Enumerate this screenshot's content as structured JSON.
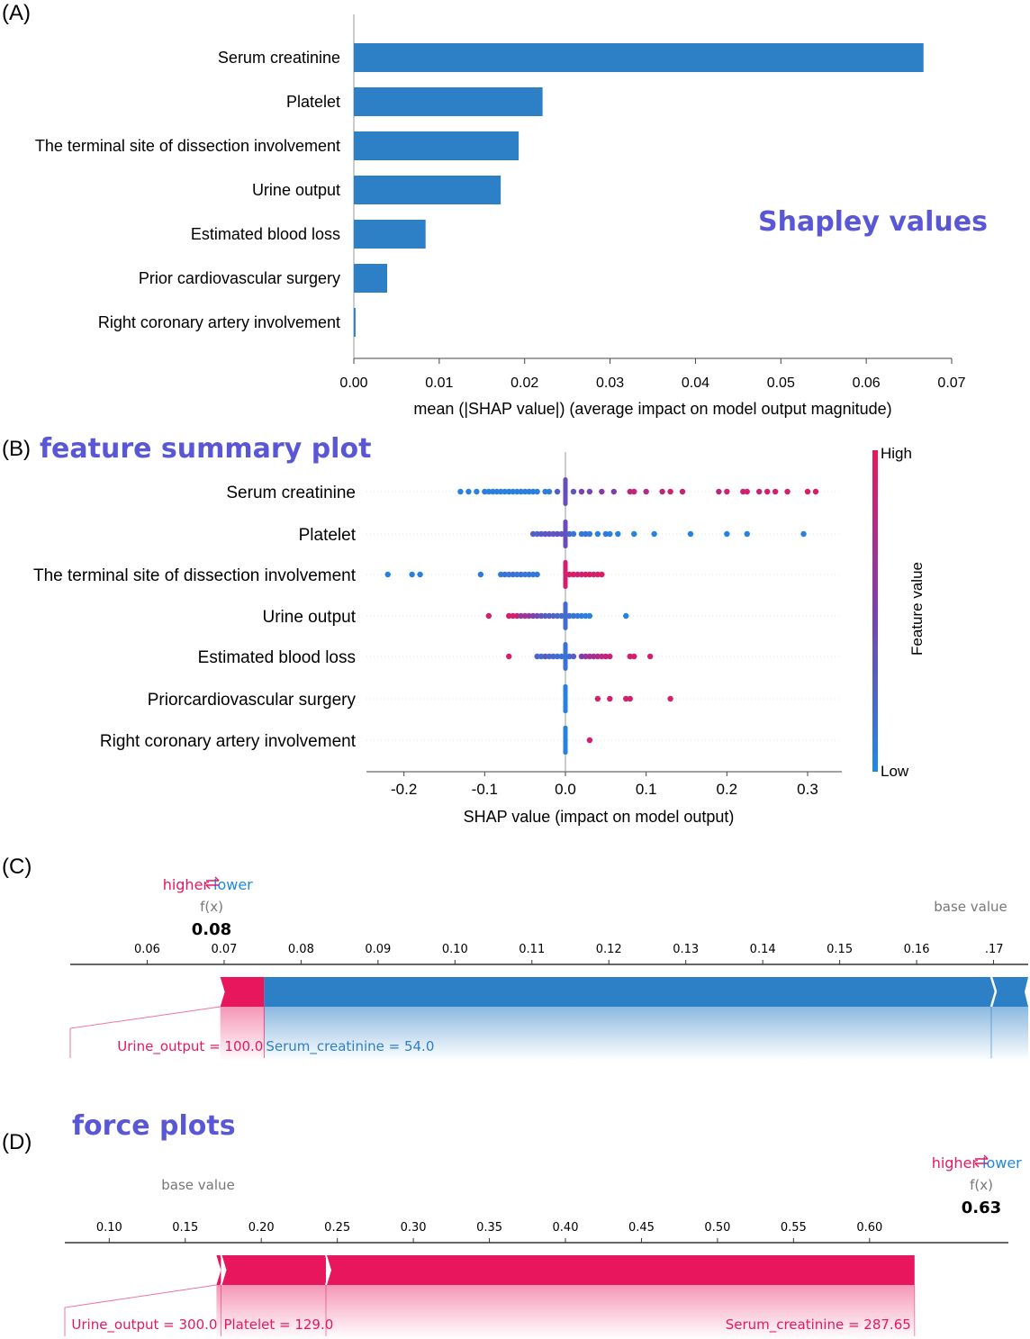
{
  "colors": {
    "blue": "#1e88e5",
    "bar_blue": "#2d7fc6",
    "red": "#e8175d",
    "title_purple": "#5a57d6",
    "grey": "#777777"
  },
  "panels": {
    "a": {
      "letter": "(A)",
      "annotation": "Shapley values"
    },
    "b": {
      "letter": "(B)",
      "annotation": "feature summary plot"
    },
    "c": {
      "letter": "(C)"
    },
    "d": {
      "letter": "(D)",
      "annotation": "force plots"
    }
  },
  "chart_data": [
    {
      "type": "bar",
      "orientation": "horizontal",
      "categories": [
        "Serum creatinine",
        "Platelet",
        "The terminal site of dissection involvement",
        "Urine output",
        "Estimated blood loss",
        "Prior cardiovascular surgery",
        "Right coronary artery involvement"
      ],
      "values": [
        0.0667,
        0.0221,
        0.0193,
        0.0172,
        0.0084,
        0.0039,
        0.0002
      ],
      "xlabel": "mean (|SHAP value|) (average impact on model output magnitude)",
      "xlim": [
        0,
        0.07
      ],
      "xticks": [
        "0.00",
        "0.01",
        "0.02",
        "0.03",
        "0.04",
        "0.05",
        "0.06",
        "0.07"
      ]
    },
    {
      "type": "scatter",
      "categories": [
        "Serum creatinine",
        "Platelet",
        "The terminal site of dissection involvement",
        "Urine output",
        "Estimated blood loss",
        "Priorcardiovascular surgery",
        "Right coronary artery involvement"
      ],
      "points": [
        {
          "x": [
            -0.13,
            -0.12,
            -0.11,
            -0.1,
            -0.095,
            -0.09,
            -0.085,
            -0.08,
            -0.075,
            -0.07,
            -0.065,
            -0.06,
            -0.055,
            -0.05,
            -0.045,
            -0.04,
            -0.035,
            -0.025,
            -0.02,
            -0.01,
            0.0,
            0.01,
            0.02,
            0.03,
            0.045,
            0.06,
            0.08,
            0.085,
            0.1,
            0.12,
            0.13,
            0.145,
            0.19,
            0.2,
            0.22,
            0.225,
            0.24,
            0.25,
            0.26,
            0.275,
            0.3,
            0.31
          ],
          "v": [
            0.05,
            0.05,
            0.05,
            0.06,
            0.05,
            0.05,
            0.06,
            0.05,
            0.05,
            0.06,
            0.05,
            0.05,
            0.05,
            0.07,
            0.06,
            0.06,
            0.05,
            0.08,
            0.07,
            0.3,
            0.4,
            0.35,
            0.5,
            0.45,
            0.55,
            0.5,
            0.8,
            0.85,
            0.75,
            0.8,
            0.9,
            0.85,
            0.8,
            0.9,
            0.85,
            0.9,
            0.85,
            0.95,
            0.9,
            0.9,
            0.95,
            0.95
          ]
        },
        {
          "x": [
            -0.04,
            -0.035,
            -0.03,
            -0.025,
            -0.02,
            -0.015,
            -0.01,
            -0.005,
            0.0,
            0.0,
            0.005,
            0.01,
            0.02,
            0.025,
            0.03,
            0.04,
            0.05,
            0.055,
            0.065,
            0.085,
            0.11,
            0.155,
            0.2,
            0.225,
            0.295
          ],
          "v": [
            0.3,
            0.25,
            0.3,
            0.35,
            0.35,
            0.3,
            0.4,
            0.35,
            0.3,
            0.4,
            0.2,
            0.15,
            0.1,
            0.15,
            0.1,
            0.05,
            0.1,
            0.05,
            0.05,
            0.05,
            0.05,
            0.05,
            0.05,
            0.05,
            0.05
          ]
        },
        {
          "x": [
            -0.22,
            -0.19,
            -0.18,
            -0.105,
            -0.08,
            -0.075,
            -0.07,
            -0.065,
            -0.06,
            -0.055,
            -0.05,
            -0.045,
            -0.04,
            -0.035,
            0.0,
            0.0,
            0.005,
            0.01,
            0.015,
            0.02,
            0.025,
            0.03,
            0.035,
            0.04,
            0.045
          ],
          "v": [
            0.05,
            0.05,
            0.05,
            0.08,
            0.1,
            0.15,
            0.1,
            0.2,
            0.1,
            0.15,
            0.1,
            0.12,
            0.1,
            0.1,
            0.95,
            0.9,
            0.92,
            0.95,
            0.9,
            0.9,
            0.92,
            0.95,
            0.9,
            0.93,
            0.95
          ]
        },
        {
          "x": [
            -0.095,
            -0.07,
            -0.065,
            -0.06,
            -0.055,
            -0.05,
            -0.045,
            -0.04,
            -0.035,
            -0.03,
            -0.025,
            -0.02,
            -0.015,
            -0.01,
            -0.005,
            0.0,
            0.005,
            0.01,
            0.015,
            0.02,
            0.025,
            0.03,
            0.075
          ],
          "v": [
            0.9,
            0.95,
            0.9,
            0.85,
            0.6,
            0.7,
            0.6,
            0.5,
            0.45,
            0.4,
            0.3,
            0.3,
            0.25,
            0.25,
            0.2,
            0.2,
            0.15,
            0.15,
            0.1,
            0.08,
            0.07,
            0.05,
            0.05
          ]
        },
        {
          "x": [
            -0.07,
            -0.035,
            -0.03,
            -0.025,
            -0.02,
            -0.015,
            -0.01,
            -0.005,
            0.0,
            0.005,
            0.01,
            0.02,
            0.025,
            0.03,
            0.035,
            0.04,
            0.045,
            0.05,
            0.055,
            0.08,
            0.085,
            0.105
          ],
          "v": [
            0.9,
            0.25,
            0.2,
            0.3,
            0.25,
            0.2,
            0.2,
            0.15,
            0.15,
            0.2,
            0.3,
            0.5,
            0.6,
            0.7,
            0.7,
            0.75,
            0.8,
            0.85,
            0.8,
            0.9,
            0.9,
            0.9
          ]
        },
        {
          "x": [
            0.0,
            0.0,
            0.0,
            0.0,
            0.0,
            0.0,
            0.04,
            0.055,
            0.075,
            0.08,
            0.13
          ],
          "v": [
            0.05,
            0.05,
            0.05,
            0.05,
            0.05,
            0.05,
            0.9,
            0.9,
            0.9,
            0.9,
            0.9
          ]
        },
        {
          "x": [
            0.0,
            0.0,
            0.0,
            0.0,
            0.0,
            0.0,
            0.03
          ],
          "v": [
            0.05,
            0.05,
            0.05,
            0.05,
            0.05,
            0.05,
            0.9
          ]
        }
      ],
      "xlabel": "SHAP value (impact on model output)",
      "xlim": [
        -0.25,
        0.34
      ],
      "xticks": [
        "-0.2",
        "-0.1",
        "0.0",
        "0.1",
        "0.2",
        "0.3"
      ],
      "colorbar": {
        "label": "Feature value",
        "high": "High",
        "low": "Low"
      }
    },
    {
      "type": "force",
      "legend": {
        "higher": "higher",
        "lower": "lower"
      },
      "fx_label": "f(x)",
      "fx_value": "0.08",
      "fx": 0.0752,
      "base_label": "base value",
      "base_value": 0.1697,
      "xlim": [
        0.05,
        0.1745
      ],
      "xticks": [
        0.06,
        0.07,
        0.08,
        0.09,
        0.1,
        0.11,
        0.12,
        0.13,
        0.14,
        0.15,
        0.16,
        0.17
      ],
      "xtick_labels": [
        "0.06",
        "0.07",
        "0.08",
        "0.09",
        "0.10",
        "0.11",
        "0.12",
        "0.13",
        "0.14",
        "0.15",
        "0.16",
        " .17"
      ],
      "higher": [
        {
          "label": "Urine_output = 100.0",
          "from": 0.0695,
          "to": 0.0752
        }
      ],
      "lower": [
        {
          "label": "Serum_creatinine = 54.0",
          "from": 0.0752,
          "to": 0.1745
        }
      ]
    },
    {
      "type": "force",
      "legend": {
        "higher": "higher",
        "lower": "lower"
      },
      "fx_label": "f(x)",
      "fx_value": "0.63",
      "fx": 0.6296,
      "base_label": "base value",
      "base_value": 0.1705,
      "xlim": [
        0.0708,
        0.6913
      ],
      "xticks": [
        0.1,
        0.15,
        0.2,
        0.25,
        0.3,
        0.35,
        0.4,
        0.45,
        0.5,
        0.55,
        0.6
      ],
      "xtick_labels": [
        "0.10",
        "0.15",
        "0.20",
        "0.25",
        "0.30",
        "0.35",
        "0.40",
        "0.45",
        "0.50",
        "0.55",
        "0.60"
      ],
      "higher": [
        {
          "label": "Urine_output = 300.0",
          "from": 0.1705,
          "to": 0.1735
        },
        {
          "label": "Platelet = 129.0",
          "from": 0.1735,
          "to": 0.2425
        },
        {
          "label": "Serum_creatinine = 287.65",
          "from": 0.2425,
          "to": 0.6296
        }
      ],
      "lower": []
    }
  ]
}
